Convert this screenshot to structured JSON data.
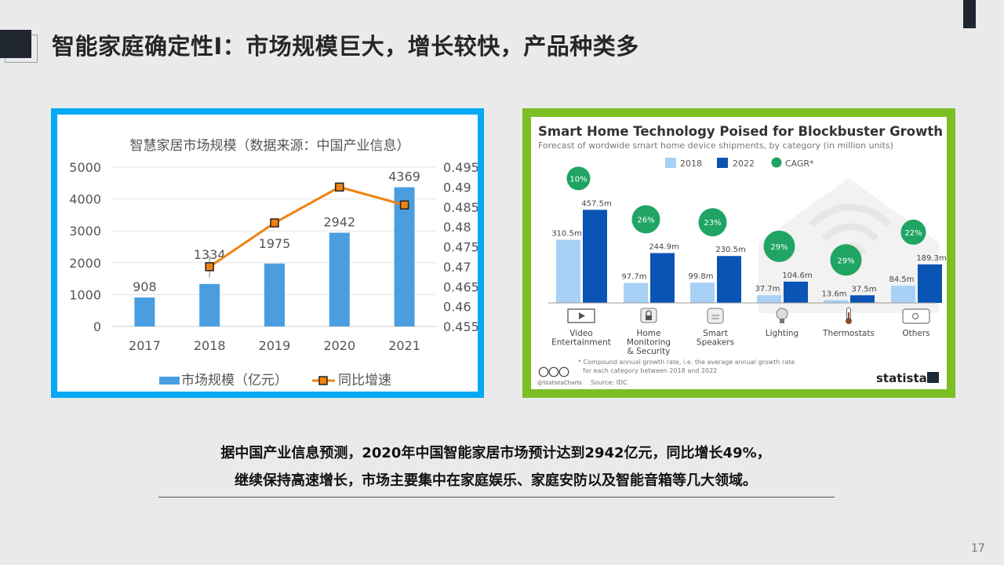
{
  "slide": {
    "title": "智能家庭确定性I：市场规模巨大，增长较快，产品种类多",
    "caption_line1": "据中国产业信息预测，2020年中国智能家居市场预计达到2942亿元，同比增长49%，",
    "caption_line2": "继续保持高速增长，市场主要集中在家庭娱乐、家庭安防以及智能音箱等几大领域。",
    "page_number": "17"
  },
  "colors": {
    "bar_blue": "#4a9ee0",
    "line_orange": "#f0820f",
    "frame_left": "#03a9f4",
    "frame_right": "#7cbf24",
    "bar_light": "#a7d1f5",
    "bar_dark": "#0a54b5",
    "cagr_green": "#1fa463"
  },
  "chart_data": [
    {
      "type": "bar",
      "title": "智慧家居市场规模（数据来源：中国产业信息）",
      "categories": [
        "2017",
        "2018",
        "2019",
        "2020",
        "2021"
      ],
      "series": [
        {
          "name": "市场规模（亿元）",
          "type": "bar",
          "values": [
            908,
            1334,
            1975,
            2942,
            4369
          ],
          "axis": "left"
        },
        {
          "name": "同比增速",
          "type": "line",
          "values": [
            null,
            0.47,
            0.481,
            0.49,
            0.4855
          ],
          "axis": "right"
        }
      ],
      "data_labels": [
        "908",
        "1334",
        "1975",
        "2942",
        "4369"
      ],
      "ylim": [
        0,
        5000
      ],
      "y_ticks": [
        "0",
        "1000",
        "2000",
        "3000",
        "4000",
        "5000"
      ],
      "y2lim": [
        0.455,
        0.495
      ],
      "y2_ticks": [
        "0.455",
        "0.46",
        "0.465",
        "0.47",
        "0.475",
        "0.48",
        "0.485",
        "0.49",
        "0.495"
      ],
      "grid": true,
      "legend": "bottom"
    },
    {
      "type": "bar",
      "title": "Smart Home Technology Poised for Blockbuster Growth",
      "subtitle": "Forecast of wordwide smart home device shipments, by category (in million units)",
      "categories": [
        "Video Entertainment",
        "Home Monitoring & Security",
        "Smart Speakers",
        "Lighting",
        "Thermostats",
        "Others"
      ],
      "category_labels": [
        [
          "Video",
          "Entertainment"
        ],
        [
          "Home",
          "Monitoring",
          "& Security"
        ],
        [
          "Smart",
          "Speakers"
        ],
        [
          "Lighting"
        ],
        [
          "Thermostats"
        ],
        [
          "Others"
        ]
      ],
      "category_icons": [
        "tv-icon",
        "lock-icon",
        "speaker-icon",
        "bulb-icon",
        "thermometer-icon",
        "tablet-icon"
      ],
      "series": [
        {
          "name": "2018",
          "values": [
            310.5,
            97.7,
            99.8,
            37.7,
            13.6,
            84.5
          ],
          "labels": [
            "310.5m",
            "97.7m",
            "99.8m",
            "37.7m",
            "13.6m",
            "84.5m"
          ]
        },
        {
          "name": "2022",
          "values": [
            457.5,
            244.9,
            230.5,
            104.6,
            37.5,
            189.3
          ],
          "labels": [
            "457.5m",
            "244.9m",
            "230.5m",
            "104.6m",
            "37.5m",
            "189.3m"
          ]
        }
      ],
      "cagr_legend": "CAGR*",
      "cagr": [
        "10%",
        "26%",
        "23%",
        "29%",
        "29%",
        "22%"
      ],
      "ylim": [
        0,
        500
      ],
      "legend": "top",
      "footnote_line1": "* Compound annual growth rate, i.e. the average annual growth rate",
      "footnote_line2": "for each category between 2018 and 2022",
      "credit": "@StatistaCharts",
      "source": "Source: IDC",
      "brand": "statista"
    }
  ]
}
